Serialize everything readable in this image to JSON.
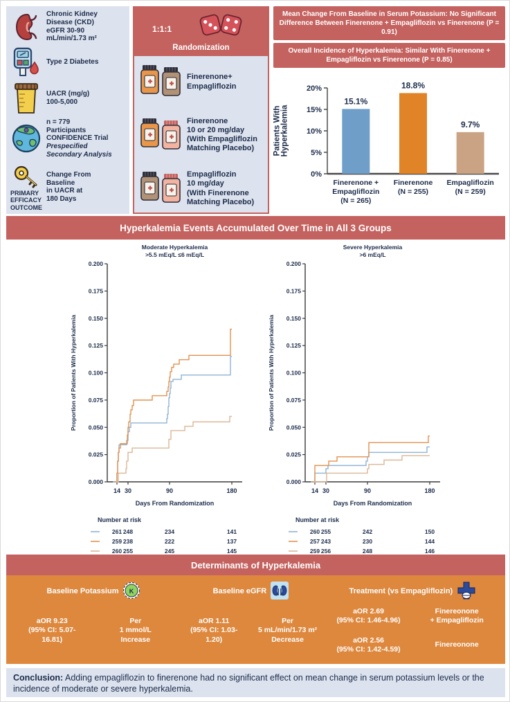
{
  "colors": {
    "rose": "#c4625f",
    "panel_blue": "#dce3ee",
    "orange_panel": "#de883e",
    "navy_text": "#1c2b4a",
    "bar_blue": "#6f9fc8",
    "bar_orange": "#e08427",
    "bar_tan": "#c9a383",
    "curve_blue": "#8fb3d4",
    "curve_orange": "#e2914e",
    "curve_tan": "#dbb795"
  },
  "study_panel": {
    "items": [
      {
        "icon": "kidney-icon",
        "text": "Chronic Kidney\nDisease (CKD)\neGFR 30-90\nmL/min/1.73 m²"
      },
      {
        "icon": "glucometer-icon",
        "text": "Type 2 Diabetes"
      },
      {
        "icon": "urine-cup-icon",
        "text": "UACR (mg/g)\n100-5,000"
      },
      {
        "icon": "globe-icon",
        "text": "n = 779\nParticipants\nCONFIDENCE Trial",
        "italic": "Prespecified\nSecondary Analysis"
      },
      {
        "icon": "key-icon",
        "label": "PRIMARY\nEFFICACY\nOUTCOME",
        "text": "Change From\nBaseline\nin UACR at\n180 Days"
      }
    ]
  },
  "randomization": {
    "ratio": "1:1:1",
    "label": "Randomization",
    "arms": [
      {
        "label": "Finerenone+\nEmpagliflozin"
      },
      {
        "label": "Finerenone\n10 or 20 mg/day\n(With Empagliflozin\nMatching Placebo)"
      },
      {
        "label": "Empagliflozin\n10 mg/day\n(With Finerenone\nMatching Placebo)"
      }
    ]
  },
  "banners": {
    "potassium": "Mean Change From Baseline in Serum Potassium: No Significant Difference Between Finerenone + Empagliflozin vs Finerenone (P = 0.91)",
    "incidence": "Overall Incidence of Hyperkalemia: Similar With Finerenone + Empagliflozin vs Finerenone (P = 0.85)",
    "km": "Hyperkalemia Events Accumulated Over Time in All 3 Groups"
  },
  "chart_data": [
    {
      "id": "incidence-bar",
      "type": "bar",
      "ylabel": "Patients With\nHyperkalemia",
      "ylim": [
        0,
        20
      ],
      "yticks": [
        0,
        5,
        10,
        15,
        20
      ],
      "ytick_labels": [
        "0%",
        "5%",
        "10%",
        "15%",
        "20%"
      ],
      "categories": [
        "Finerenone +\nEmpagliflozin\n(N = 265)",
        "Finerenone\n(N = 255)",
        "Empagliflozin\n(N = 259)"
      ],
      "values": [
        15.1,
        18.8,
        9.7
      ],
      "value_labels": [
        "15.1%",
        "18.8%",
        "9.7%"
      ],
      "colors": [
        "#6f9fc8",
        "#e08427",
        "#c9a383"
      ]
    },
    {
      "id": "km-moderate",
      "type": "line",
      "title": "Moderate Hyperkalemia\n>5.5 mEq/L ≤6 mEq/L",
      "xlabel": "Days From Randomization",
      "ylabel": "Proportion of Patients With Hyperkalemia",
      "xlim": [
        0,
        195
      ],
      "ylim": [
        0,
        0.2
      ],
      "xticks": [
        14,
        30,
        90,
        180
      ],
      "ytick_step": 0.025,
      "series": [
        {
          "name": "Finerenone + Empagliflozin",
          "color": "#8fb3d4",
          "steps": [
            [
              8,
              0
            ],
            [
              13,
              0
            ],
            [
              14,
              0.008
            ],
            [
              15,
              0.019
            ],
            [
              16,
              0.027
            ],
            [
              17,
              0.034
            ],
            [
              27,
              0.034
            ],
            [
              28,
              0.038
            ],
            [
              30,
              0.046
            ],
            [
              32,
              0.05
            ],
            [
              34,
              0.054
            ],
            [
              85,
              0.054
            ],
            [
              86,
              0.058
            ],
            [
              87,
              0.062
            ],
            [
              88,
              0.069
            ],
            [
              89,
              0.077
            ],
            [
              90,
              0.081
            ],
            [
              91,
              0.086
            ],
            [
              92,
              0.092
            ],
            [
              95,
              0.094
            ],
            [
              107,
              0.098
            ],
            [
              177,
              0.098
            ],
            [
              178,
              0.115
            ],
            [
              180,
              0.115
            ]
          ]
        },
        {
          "name": "Finerenone",
          "color": "#e2914e",
          "steps": [
            [
              10,
              0
            ],
            [
              13,
              0
            ],
            [
              14,
              0.008
            ],
            [
              15,
              0.019
            ],
            [
              16,
              0.027
            ],
            [
              17,
              0.031
            ],
            [
              19,
              0.035
            ],
            [
              27,
              0.035
            ],
            [
              29,
              0.043
            ],
            [
              30,
              0.05
            ],
            [
              31,
              0.055
            ],
            [
              33,
              0.062
            ],
            [
              34,
              0.066
            ],
            [
              36,
              0.07
            ],
            [
              38,
              0.075
            ],
            [
              62,
              0.075
            ],
            [
              65,
              0.079
            ],
            [
              85,
              0.079
            ],
            [
              86,
              0.083
            ],
            [
              88,
              0.087
            ],
            [
              89,
              0.092
            ],
            [
              90,
              0.096
            ],
            [
              91,
              0.101
            ],
            [
              93,
              0.105
            ],
            [
              96,
              0.108
            ],
            [
              104,
              0.112
            ],
            [
              118,
              0.116
            ],
            [
              177,
              0.116
            ],
            [
              178,
              0.14
            ],
            [
              180,
              0.14
            ]
          ]
        },
        {
          "name": "Empagliflozin",
          "color": "#dbb795",
          "steps": [
            [
              12,
              0
            ],
            [
              15,
              0
            ],
            [
              16,
              0.008
            ],
            [
              26,
              0.008
            ],
            [
              27,
              0.012
            ],
            [
              28,
              0.019
            ],
            [
              30,
              0.027
            ],
            [
              36,
              0.031
            ],
            [
              87,
              0.031
            ],
            [
              89,
              0.039
            ],
            [
              92,
              0.047
            ],
            [
              110,
              0.047
            ],
            [
              112,
              0.051
            ],
            [
              124,
              0.055
            ],
            [
              175,
              0.055
            ],
            [
              177,
              0.06
            ],
            [
              180,
              0.06
            ]
          ]
        }
      ],
      "number_at_risk": {
        "label": "Number at risk",
        "times": [
          14,
          30,
          90,
          180
        ],
        "rows": [
          [
            261,
            248,
            234,
            141
          ],
          [
            259,
            238,
            222,
            137
          ],
          [
            260,
            255,
            245,
            145
          ]
        ]
      }
    },
    {
      "id": "km-severe",
      "type": "line",
      "title": "Severe Hyperkalemia\n>6 mEq/L",
      "xlabel": "Days From Randomization",
      "ylabel": "Proportion of Patients With Hyperkalemia",
      "xlim": [
        0,
        195
      ],
      "ylim": [
        0,
        0.2
      ],
      "xticks": [
        14,
        30,
        90,
        180
      ],
      "ytick_step": 0.025,
      "series": [
        {
          "name": "Finerenone + Empagliflozin",
          "color": "#8fb3d4",
          "steps": [
            [
              8,
              0
            ],
            [
              13,
              0
            ],
            [
              14,
              0.008
            ],
            [
              29,
              0.008
            ],
            [
              30,
              0.012
            ],
            [
              33,
              0.015
            ],
            [
              86,
              0.015
            ],
            [
              88,
              0.019
            ],
            [
              90,
              0.023
            ],
            [
              92,
              0.027
            ],
            [
              174,
              0.027
            ],
            [
              176,
              0.032
            ],
            [
              180,
              0.032
            ]
          ]
        },
        {
          "name": "Finerenone",
          "color": "#e2914e",
          "steps": [
            [
              10,
              0
            ],
            [
              12,
              0
            ],
            [
              14,
              0.015
            ],
            [
              32,
              0.015
            ],
            [
              34,
              0.019
            ],
            [
              44,
              0.019
            ],
            [
              46,
              0.023
            ],
            [
              90,
              0.023
            ],
            [
              92,
              0.036
            ],
            [
              176,
              0.036
            ],
            [
              178,
              0.042
            ],
            [
              180,
              0.042
            ]
          ]
        },
        {
          "name": "Empagliflozin",
          "color": "#dbb795",
          "steps": [
            [
              12,
              0
            ],
            [
              29,
              0
            ],
            [
              31,
              0.008
            ],
            [
              88,
              0.008
            ],
            [
              90,
              0.012
            ],
            [
              92,
              0.016
            ],
            [
              112,
              0.016
            ],
            [
              114,
              0.02
            ],
            [
              138,
              0.02
            ],
            [
              140,
              0.024
            ],
            [
              180,
              0.024
            ]
          ]
        }
      ],
      "number_at_risk": {
        "label": "Number at risk",
        "times": [
          14,
          30,
          90,
          180
        ],
        "rows": [
          [
            260,
            255,
            242,
            150
          ],
          [
            257,
            243,
            230,
            144
          ],
          [
            259,
            256,
            248,
            146
          ]
        ]
      }
    }
  ],
  "determinants": {
    "title": "Determinants of Hyperkalemia",
    "potassium": {
      "heading": "Baseline Potassium",
      "aor": "aOR 9.23\n(95% CI: 5.07-\n16.81)",
      "per": "Per\n1 mmol/L\nIncrease"
    },
    "egfr": {
      "heading": "Baseline eGFR",
      "aor": "aOR 1.11\n(95% CI: 1.03-\n1.20)",
      "per": "Per\n5 mL/min/1.73 m²\nDecrease"
    },
    "treatment": {
      "heading": "Treatment (vs Empagliflozin)",
      "rows": [
        {
          "aor": "aOR 2.69\n(95% CI: 1.46-4.96)",
          "arm": "Finereonone\n+ Empagliflozin"
        },
        {
          "aor": "aOR 2.56\n(95% CI: 1.42-4.59)",
          "arm": "Finereonone"
        }
      ]
    }
  },
  "conclusion": {
    "label": "Conclusion:",
    "text": " Adding empagliflozin to finerenone had no significant effect on mean change in serum potassium levels or the incidence of moderate or severe hyperkalemia."
  }
}
